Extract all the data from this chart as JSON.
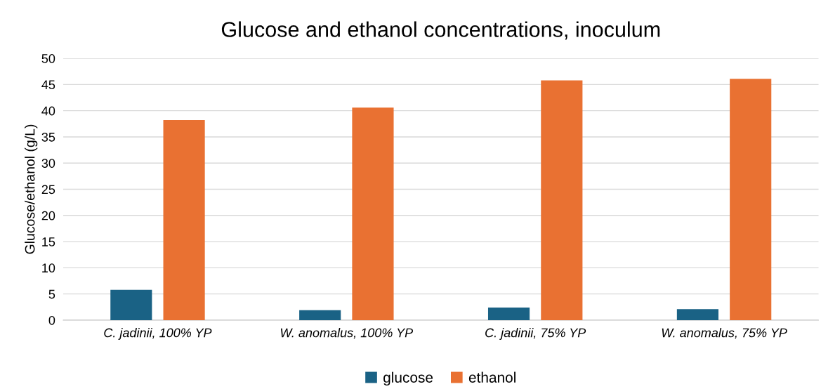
{
  "chart_data": {
    "type": "bar",
    "title": "Glucose and ethanol concentrations, inoculum",
    "ylabel": "Glucose/ethanol (g/L)",
    "categories": [
      "C. jadinii, 100% YP",
      "W. anomalus, 100% YP",
      "C. jadinii, 75% YP",
      "W. anomalus, 75% YP"
    ],
    "series": [
      {
        "name": "glucose",
        "color": "#1a6285",
        "values": [
          5.8,
          1.9,
          2.4,
          2.1
        ]
      },
      {
        "name": "ethanol",
        "color": "#e97132",
        "values": [
          38.2,
          40.6,
          45.8,
          46.1
        ]
      }
    ],
    "ylim": [
      0,
      50
    ],
    "yticks": [
      0,
      5,
      10,
      15,
      20,
      25,
      30,
      35,
      40,
      45,
      50
    ],
    "grid": "y",
    "legend": "bottom"
  }
}
